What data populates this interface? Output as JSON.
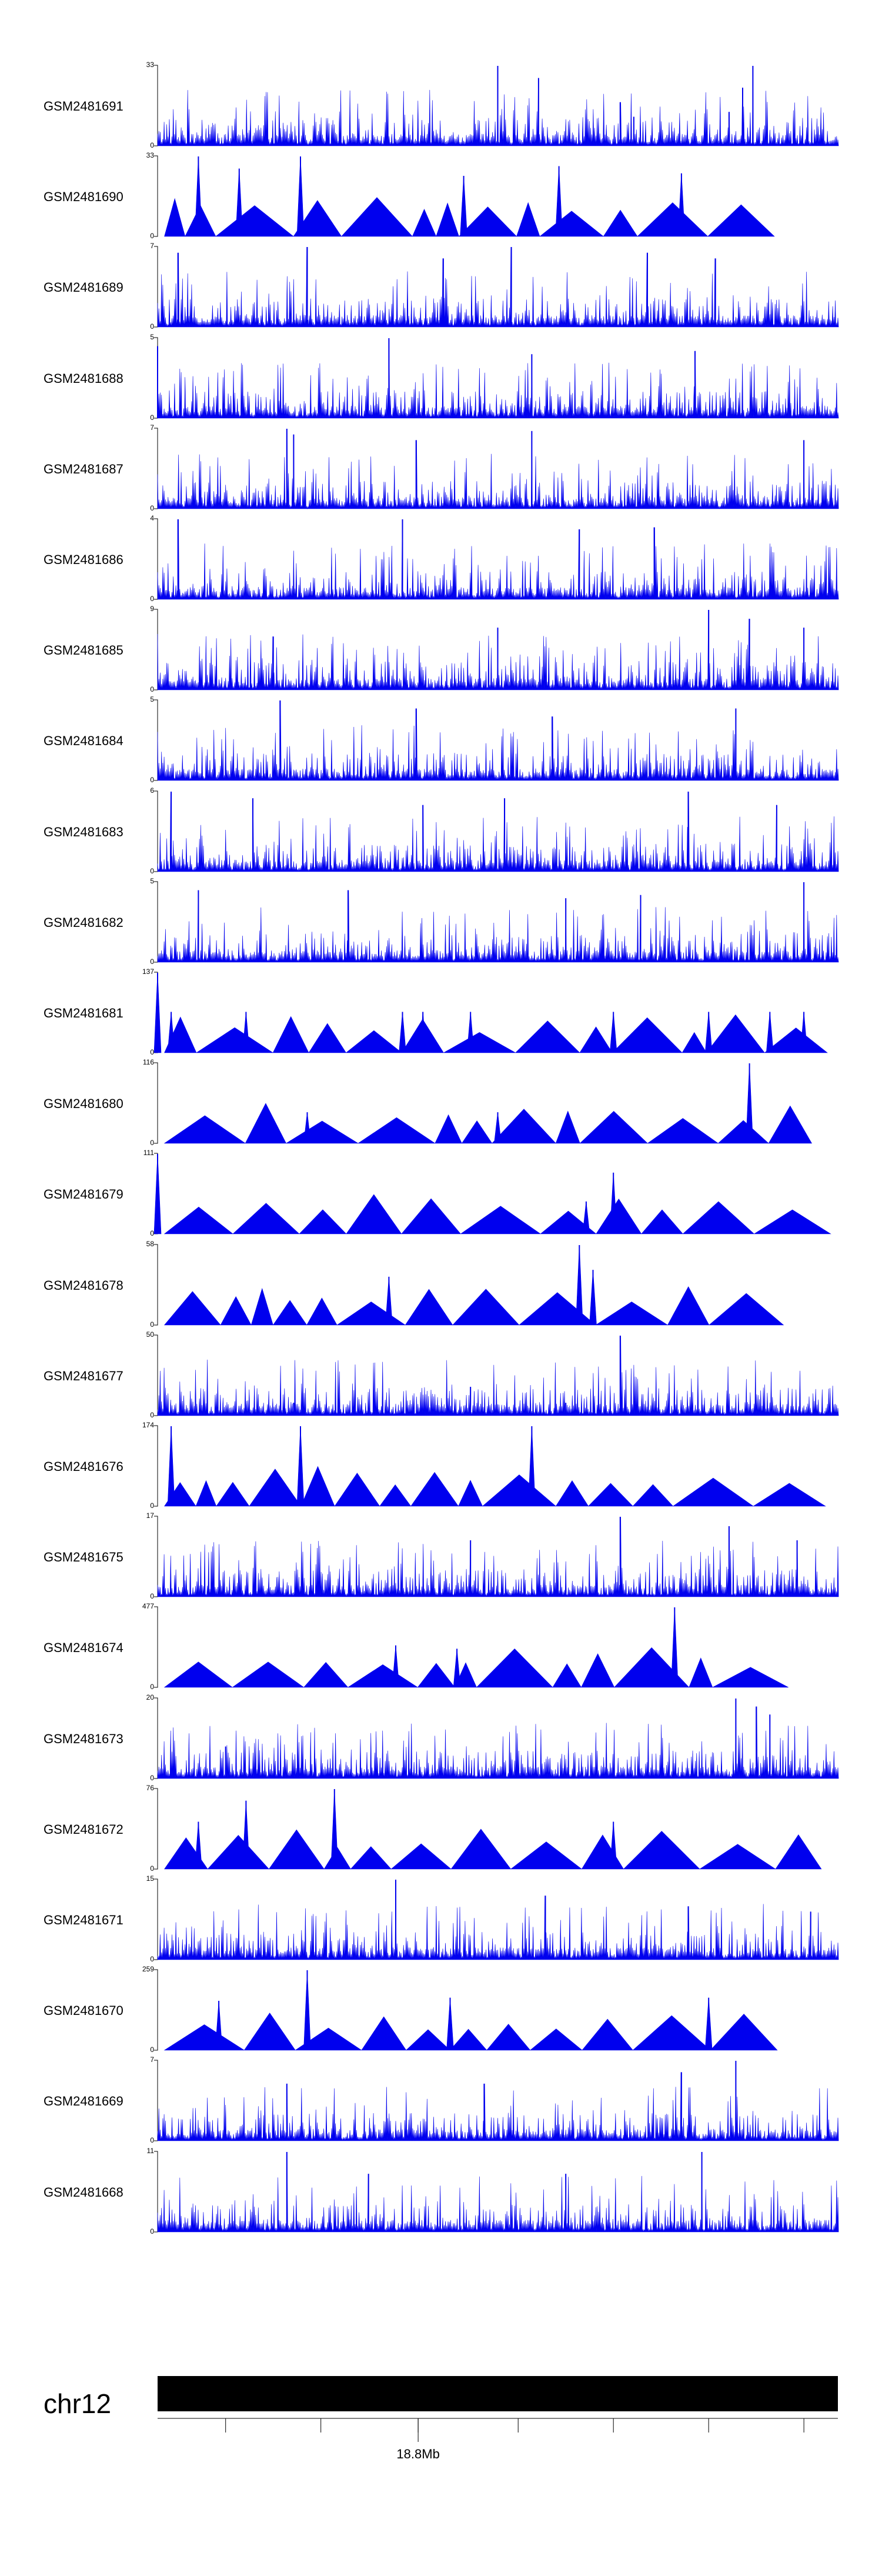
{
  "colors": {
    "signal": "#0000ee",
    "axis": "#000000",
    "ideogram": "#000000"
  },
  "chart_data": {
    "type": "area",
    "genome_region": "chr12",
    "x_range_mb": [
      18.75,
      18.842
    ],
    "tracks": [
      {
        "name": "GSM2481691",
        "ymax": "33",
        "ymin": "0",
        "style": "dense",
        "peaks": [
          [
            0.5,
            33.0
          ],
          [
            0.56,
            28.0
          ],
          [
            0.68,
            18.0
          ],
          [
            0.7,
            12.0
          ],
          [
            0.84,
            14.0
          ],
          [
            0.86,
            24.0
          ],
          [
            0.875,
            33.0
          ]
        ]
      },
      {
        "name": "GSM2481690",
        "ymax": "33",
        "ymin": "0",
        "style": "sparse",
        "peaks": [
          [
            0.06,
            33.0
          ],
          [
            0.12,
            28.0
          ],
          [
            0.21,
            33.0
          ],
          [
            0.45,
            25.0
          ],
          [
            0.59,
            29.0
          ],
          [
            0.77,
            26.0
          ]
        ]
      },
      {
        "name": "GSM2481689",
        "ymax": "7",
        "ymin": "0",
        "style": "dense",
        "peaks": [
          [
            0.03,
            6.5
          ],
          [
            0.22,
            7.0
          ],
          [
            0.42,
            6.0
          ],
          [
            0.52,
            7.0
          ],
          [
            0.72,
            6.5
          ],
          [
            0.82,
            6.0
          ]
        ]
      },
      {
        "name": "GSM2481688",
        "ymax": "5",
        "ymin": "0",
        "style": "dense",
        "peaks": [
          [
            0.0,
            4.5
          ],
          [
            0.34,
            5.0
          ],
          [
            0.55,
            4.0
          ],
          [
            0.79,
            4.2
          ]
        ]
      },
      {
        "name": "GSM2481687",
        "ymax": "7",
        "ymin": "0",
        "style": "dense",
        "peaks": [
          [
            0.19,
            7.0
          ],
          [
            0.2,
            6.5
          ],
          [
            0.38,
            6.0
          ],
          [
            0.55,
            6.8
          ],
          [
            0.95,
            6.0
          ]
        ]
      },
      {
        "name": "GSM2481686",
        "ymax": "4",
        "ymin": "0",
        "style": "dense",
        "peaks": [
          [
            0.03,
            4.0
          ],
          [
            0.36,
            4.0
          ],
          [
            0.62,
            3.5
          ],
          [
            0.73,
            3.6
          ]
        ]
      },
      {
        "name": "GSM2481685",
        "ymax": "9",
        "ymin": "0",
        "style": "dense",
        "peaks": [
          [
            0.17,
            6.0
          ],
          [
            0.5,
            7.0
          ],
          [
            0.81,
            9.0
          ],
          [
            0.87,
            8.0
          ],
          [
            0.95,
            7.0
          ]
        ]
      },
      {
        "name": "GSM2481684",
        "ymax": "5",
        "ymin": "0",
        "style": "dense",
        "peaks": [
          [
            0.18,
            5.0
          ],
          [
            0.38,
            4.5
          ],
          [
            0.58,
            4.0
          ],
          [
            0.85,
            4.5
          ]
        ]
      },
      {
        "name": "GSM2481683",
        "ymax": "6",
        "ymin": "0",
        "style": "dense",
        "peaks": [
          [
            0.02,
            6.0
          ],
          [
            0.14,
            5.5
          ],
          [
            0.39,
            5.0
          ],
          [
            0.51,
            5.5
          ],
          [
            0.78,
            6.0
          ],
          [
            0.91,
            5.0
          ]
        ]
      },
      {
        "name": "GSM2481682",
        "ymax": "5",
        "ymin": "0",
        "style": "dense",
        "peaks": [
          [
            0.06,
            4.5
          ],
          [
            0.28,
            4.5
          ],
          [
            0.6,
            4.0
          ],
          [
            0.71,
            4.2
          ],
          [
            0.95,
            5.0
          ]
        ]
      },
      {
        "name": "GSM2481681",
        "ymax": "137",
        "ymin": "0",
        "style": "sparse",
        "peaks": [
          [
            0.0,
            137.0
          ],
          [
            0.02,
            70.0
          ],
          [
            0.13,
            70.0
          ],
          [
            0.36,
            70.0
          ],
          [
            0.39,
            70.0
          ],
          [
            0.46,
            70.0
          ],
          [
            0.67,
            70.0
          ],
          [
            0.81,
            70.0
          ],
          [
            0.9,
            70.0
          ],
          [
            0.95,
            70.0
          ]
        ]
      },
      {
        "name": "GSM2481680",
        "ymax": "116",
        "ymin": "0",
        "style": "sparse",
        "peaks": [
          [
            0.87,
            116.0
          ],
          [
            0.22,
            45.0
          ],
          [
            0.5,
            45.0
          ]
        ]
      },
      {
        "name": "GSM2481679",
        "ymax": "111",
        "ymin": "0",
        "style": "sparse",
        "peaks": [
          [
            0.0,
            111.0
          ],
          [
            0.67,
            85.0
          ],
          [
            0.63,
            45.0
          ]
        ]
      },
      {
        "name": "GSM2481678",
        "ymax": "58",
        "ymin": "0",
        "style": "sparse",
        "peaks": [
          [
            0.62,
            58.0
          ],
          [
            0.64,
            40.0
          ],
          [
            0.34,
            35.0
          ]
        ]
      },
      {
        "name": "GSM2481677",
        "ymax": "50",
        "ymin": "0",
        "style": "dense",
        "peaks": [
          [
            0.68,
            50.0
          ],
          [
            0.46,
            18.0
          ],
          [
            0.2,
            8.0
          ],
          [
            0.6,
            8.0
          ]
        ]
      },
      {
        "name": "GSM2481676",
        "ymax": "174",
        "ymin": "0",
        "style": "sparse",
        "peaks": [
          [
            0.02,
            174.0
          ],
          [
            0.21,
            174.0
          ],
          [
            0.55,
            174.0
          ]
        ]
      },
      {
        "name": "GSM2481675",
        "ymax": "17",
        "ymin": "0",
        "style": "dense",
        "peaks": [
          [
            0.46,
            12.0
          ],
          [
            0.68,
            17.0
          ],
          [
            0.84,
            15.0
          ],
          [
            0.94,
            12.0
          ]
        ]
      },
      {
        "name": "GSM2481674",
        "ymax": "477",
        "ymin": "0",
        "style": "sparse",
        "peaks": [
          [
            0.76,
            477.0
          ],
          [
            0.35,
            250.0
          ],
          [
            0.44,
            230.0
          ]
        ]
      },
      {
        "name": "GSM2481673",
        "ymax": "20",
        "ymin": "0",
        "style": "dense",
        "peaks": [
          [
            0.85,
            20.0
          ],
          [
            0.88,
            18.0
          ],
          [
            0.9,
            16.0
          ],
          [
            0.1,
            8.0
          ]
        ]
      },
      {
        "name": "GSM2481672",
        "ymax": "76",
        "ymin": "0",
        "style": "sparse",
        "peaks": [
          [
            0.26,
            76.0
          ],
          [
            0.13,
            65.0
          ],
          [
            0.06,
            45.0
          ],
          [
            0.67,
            45.0
          ]
        ]
      },
      {
        "name": "GSM2481671",
        "ymax": "15",
        "ymin": "0",
        "style": "dense",
        "peaks": [
          [
            0.35,
            15.0
          ],
          [
            0.57,
            12.0
          ],
          [
            0.78,
            10.0
          ],
          [
            0.96,
            9.0
          ]
        ]
      },
      {
        "name": "GSM2481670",
        "ymax": "259",
        "ymin": "0",
        "style": "sparse",
        "peaks": [
          [
            0.22,
            259.0
          ],
          [
            0.09,
            160.0
          ],
          [
            0.43,
            170.0
          ],
          [
            0.81,
            170.0
          ]
        ]
      },
      {
        "name": "GSM2481669",
        "ymax": "7",
        "ymin": "0",
        "style": "dense",
        "peaks": [
          [
            0.85,
            7.0
          ],
          [
            0.19,
            5.0
          ],
          [
            0.48,
            5.0
          ],
          [
            0.77,
            6.0
          ]
        ]
      },
      {
        "name": "GSM2481668",
        "ymax": "11",
        "ymin": "0",
        "style": "dense",
        "peaks": [
          [
            0.19,
            11.0
          ],
          [
            0.8,
            11.0
          ],
          [
            0.6,
            8.0
          ],
          [
            0.31,
            8.0
          ]
        ]
      }
    ],
    "scale_ticks": [
      {
        "label": "18.8Mb",
        "fraction": 0.383
      }
    ]
  },
  "ideogram": {
    "chromosome": "chr12"
  }
}
